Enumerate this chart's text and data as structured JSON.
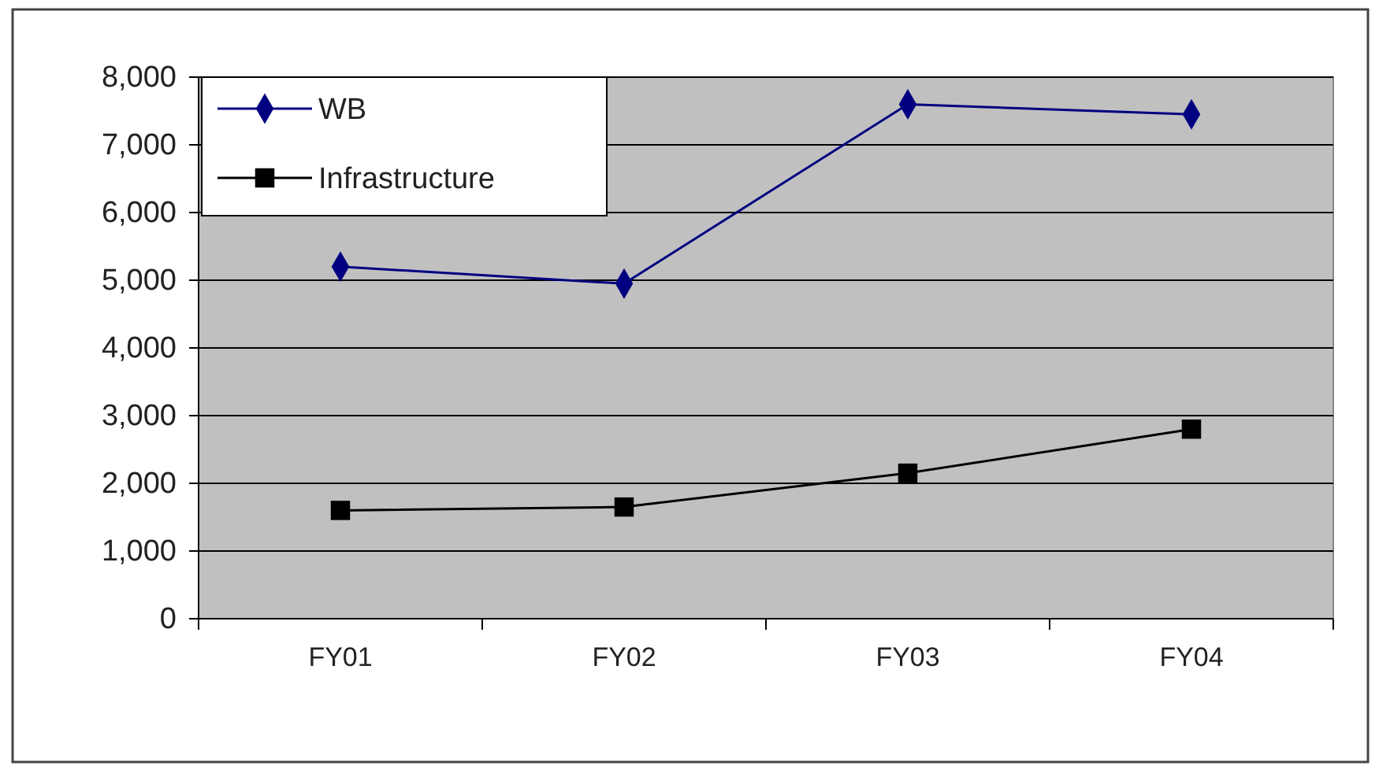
{
  "chart_data": {
    "type": "line",
    "categories": [
      "FY01",
      "FY02",
      "FY03",
      "FY04"
    ],
    "series": [
      {
        "name": "WB",
        "color": "#000080",
        "values": [
          5200,
          4950,
          7600,
          7450
        ],
        "marker": "diamond"
      },
      {
        "name": "Infrastructure",
        "color": "#000000",
        "values": [
          1600,
          1650,
          2150,
          2800
        ],
        "marker": "square"
      }
    ],
    "ylim": [
      0,
      8000
    ],
    "yticks": [
      {
        "value": 0,
        "label": "0"
      },
      {
        "value": 1000,
        "label": "1,000"
      },
      {
        "value": 2000,
        "label": "2,000"
      },
      {
        "value": 3000,
        "label": "3,000"
      },
      {
        "value": 4000,
        "label": "4,000"
      },
      {
        "value": 5000,
        "label": "5,000"
      },
      {
        "value": 6000,
        "label": "6,000"
      },
      {
        "value": 7000,
        "label": "7,000"
      },
      {
        "value": 8000,
        "label": "8,000"
      }
    ],
    "grid": "y",
    "legend": "top left"
  }
}
